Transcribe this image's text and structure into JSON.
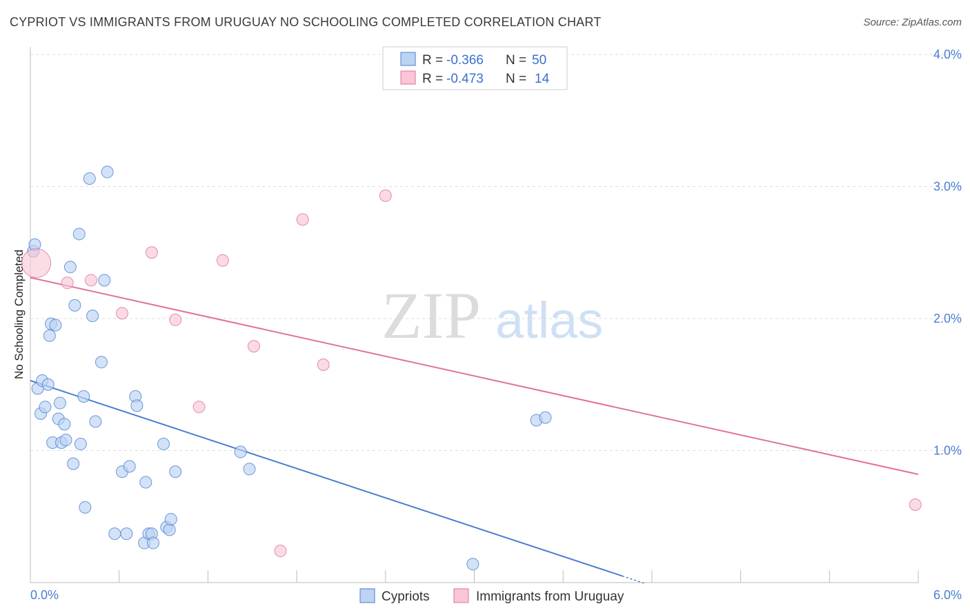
{
  "title": "CYPRIOT VS IMMIGRANTS FROM URUGUAY NO SCHOOLING COMPLETED CORRELATION CHART",
  "source": "Source: ZipAtlas.com",
  "watermark": {
    "zip": "ZIP",
    "atlas": "atlas"
  },
  "colors": {
    "blue": "#4a7ed0",
    "blue_fill": "#bcd3f3",
    "pink": "#e0729a",
    "pink_fill": "#f8c6d6",
    "grid": "#dddddd"
  },
  "stats_legend": [
    {
      "r_label": "R =",
      "r_value": "-0.366",
      "n_label": "N =",
      "n_value": "50"
    },
    {
      "r_label": "R =",
      "r_value": "-0.473",
      "n_label": "N =",
      "n_value": "14"
    }
  ],
  "chart_data": {
    "type": "scatter",
    "ylabel": "No Schooling Completed",
    "xlim": [
      0,
      6.0
    ],
    "ylim": [
      0,
      4.0
    ],
    "x_tick_labels": [
      "0.0%",
      "6.0%"
    ],
    "y_tick_labels": [
      "1.0%",
      "2.0%",
      "3.0%",
      "4.0%"
    ],
    "y_ticks": [
      1.0,
      2.0,
      3.0,
      4.0
    ],
    "grid": true,
    "legend_position": "bottom",
    "series": [
      {
        "name": "Cypriots",
        "color": "blue",
        "points": [
          [
            0.02,
            2.51
          ],
          [
            0.03,
            2.56
          ],
          [
            0.05,
            1.47
          ],
          [
            0.07,
            1.28
          ],
          [
            0.08,
            1.53
          ],
          [
            0.1,
            1.33
          ],
          [
            0.12,
            1.5
          ],
          [
            0.13,
            1.87
          ],
          [
            0.14,
            1.96
          ],
          [
            0.15,
            1.06
          ],
          [
            0.17,
            1.95
          ],
          [
            0.19,
            1.24
          ],
          [
            0.2,
            1.36
          ],
          [
            0.21,
            1.06
          ],
          [
            0.23,
            1.2
          ],
          [
            0.24,
            1.08
          ],
          [
            0.27,
            2.39
          ],
          [
            0.29,
            0.9
          ],
          [
            0.3,
            2.1
          ],
          [
            0.33,
            2.64
          ],
          [
            0.34,
            1.05
          ],
          [
            0.36,
            1.41
          ],
          [
            0.37,
            0.57
          ],
          [
            0.4,
            3.06
          ],
          [
            0.42,
            2.02
          ],
          [
            0.44,
            1.22
          ],
          [
            0.48,
            1.67
          ],
          [
            0.5,
            2.29
          ],
          [
            0.52,
            3.11
          ],
          [
            0.57,
            0.37
          ],
          [
            0.62,
            0.84
          ],
          [
            0.65,
            0.37
          ],
          [
            0.67,
            0.88
          ],
          [
            0.71,
            1.41
          ],
          [
            0.72,
            1.34
          ],
          [
            0.77,
            0.3
          ],
          [
            0.78,
            0.76
          ],
          [
            0.8,
            0.37
          ],
          [
            0.82,
            0.37
          ],
          [
            0.83,
            0.3
          ],
          [
            0.9,
            1.05
          ],
          [
            0.92,
            0.42
          ],
          [
            0.94,
            0.4
          ],
          [
            0.95,
            0.48
          ],
          [
            0.98,
            0.84
          ],
          [
            1.42,
            0.99
          ],
          [
            1.48,
            0.86
          ],
          [
            2.99,
            0.14
          ],
          [
            3.42,
            1.23
          ],
          [
            3.48,
            1.25
          ]
        ],
        "trend": [
          [
            0.0,
            1.53
          ],
          [
            4.0,
            0.05
          ]
        ]
      },
      {
        "name": "Immigrants from Uruguay",
        "color": "pink",
        "points": [
          [
            0.04,
            2.42
          ],
          [
            0.25,
            2.27
          ],
          [
            0.41,
            2.29
          ],
          [
            0.62,
            2.04
          ],
          [
            0.82,
            2.5
          ],
          [
            0.98,
            1.99
          ],
          [
            1.3,
            2.44
          ],
          [
            1.51,
            1.79
          ],
          [
            1.69,
            0.24
          ],
          [
            1.84,
            2.75
          ],
          [
            1.98,
            1.65
          ],
          [
            2.4,
            2.93
          ],
          [
            5.98,
            0.59
          ],
          [
            1.14,
            1.33
          ]
        ],
        "big_point_index": 0,
        "trend": [
          [
            0.0,
            2.31
          ],
          [
            6.0,
            0.82
          ]
        ]
      }
    ]
  }
}
